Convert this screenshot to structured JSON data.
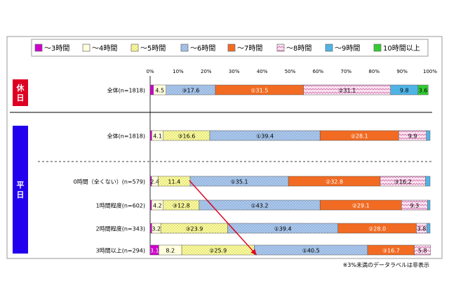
{
  "chart_data": {
    "type": "bar",
    "orientation": "horizontal",
    "stacked": "percent",
    "x_ticks": [
      "0%",
      "10%",
      "20%",
      "30%",
      "40%",
      "50%",
      "60%",
      "70%",
      "80%",
      "90%",
      "100%"
    ],
    "xlim": [
      0,
      100
    ],
    "legend_position": "top",
    "series": [
      {
        "name": "～3時間",
        "color": "#cc00cc",
        "pattern": "solid"
      },
      {
        "name": "～4時間",
        "color": "#ffffdd",
        "pattern": "solid"
      },
      {
        "name": "～5時間",
        "color": "#ffff99",
        "pattern": "dots"
      },
      {
        "name": "～6時間",
        "color": "#a9c9f2",
        "pattern": "dots"
      },
      {
        "name": "～7時間",
        "color": "#f26b22",
        "pattern": "solid"
      },
      {
        "name": "～8時間",
        "color": "#fbe4f0",
        "pattern": "wave"
      },
      {
        "name": "～9時間",
        "color": "#4fb3e6",
        "pattern": "solid"
      },
      {
        "name": "10時間以上",
        "color": "#33cc33",
        "pattern": "solid"
      }
    ],
    "groups": [
      {
        "label": "休日",
        "color": "#dd0022"
      },
      {
        "label": "平日",
        "color": "#2200ee"
      }
    ],
    "categories": [
      {
        "label": "全体(n=1818)",
        "group": "休日",
        "values": [
          1.2,
          4.5,
          17.6,
          31.5,
          31.1,
          9.8,
          3.6
        ],
        "series_index": [
          0,
          1,
          3,
          4,
          5,
          6,
          7
        ],
        "labels": [
          "1.2",
          "4.5",
          "③17.6",
          "①31.5",
          "②31.1",
          "9.8",
          "3.6"
        ]
      },
      {
        "label": "全体(n=1818)",
        "group": "平日",
        "values": [
          0.6,
          4.1,
          16.6,
          39.4,
          28.1,
          9.9,
          1.3
        ],
        "series_index": [
          0,
          1,
          2,
          3,
          4,
          5,
          6
        ],
        "labels": [
          "",
          "4.1",
          "③16.6",
          "①39.4",
          "②28.1",
          "9.9",
          ""
        ]
      },
      {
        "label": "0時間（全くない）(n=579)",
        "group": "平日",
        "values": [
          0.5,
          2.4,
          11.4,
          35.1,
          32.8,
          16.2,
          1.6
        ],
        "series_index": [
          0,
          1,
          2,
          3,
          4,
          5,
          6
        ],
        "labels": [
          "",
          "2.4",
          "11.4",
          "①35.1",
          "②32.8",
          "③16.2",
          ""
        ]
      },
      {
        "label": "1時間程度(n=602)",
        "group": "平日",
        "values": [
          0.5,
          4.2,
          12.8,
          43.2,
          29.1,
          9.3,
          0.9
        ],
        "series_index": [
          0,
          1,
          2,
          3,
          4,
          5,
          6
        ],
        "labels": [
          "",
          "4.2",
          "③12.8",
          "①43.2",
          "②29.1",
          "9.3",
          ""
        ]
      },
      {
        "label": "2時間程度(n=343)",
        "group": "平日",
        "values": [
          0.6,
          3.2,
          23.9,
          39.4,
          28.0,
          3.8,
          1.1
        ],
        "series_index": [
          0,
          1,
          2,
          3,
          4,
          5,
          6
        ],
        "labels": [
          "",
          "3.2",
          "③23.9",
          "①39.4",
          "②28.0",
          "3.8",
          ""
        ]
      },
      {
        "label": "3時間以上(n=294)",
        "group": "平日",
        "values": [
          3.1,
          8.2,
          25.9,
          40.5,
          16.7,
          5.8
        ],
        "series_index": [
          0,
          1,
          2,
          3,
          4,
          5
        ],
        "labels": [
          "3.1",
          "8.2",
          "②25.9",
          "①40.5",
          "③16.7",
          "5.8"
        ]
      }
    ],
    "arrow": {
      "from": {
        "category": 2,
        "value": 14.0
      },
      "to": {
        "category": 5,
        "value": 38.0
      }
    },
    "note": "※3%未満のデータラベルは非表示"
  }
}
